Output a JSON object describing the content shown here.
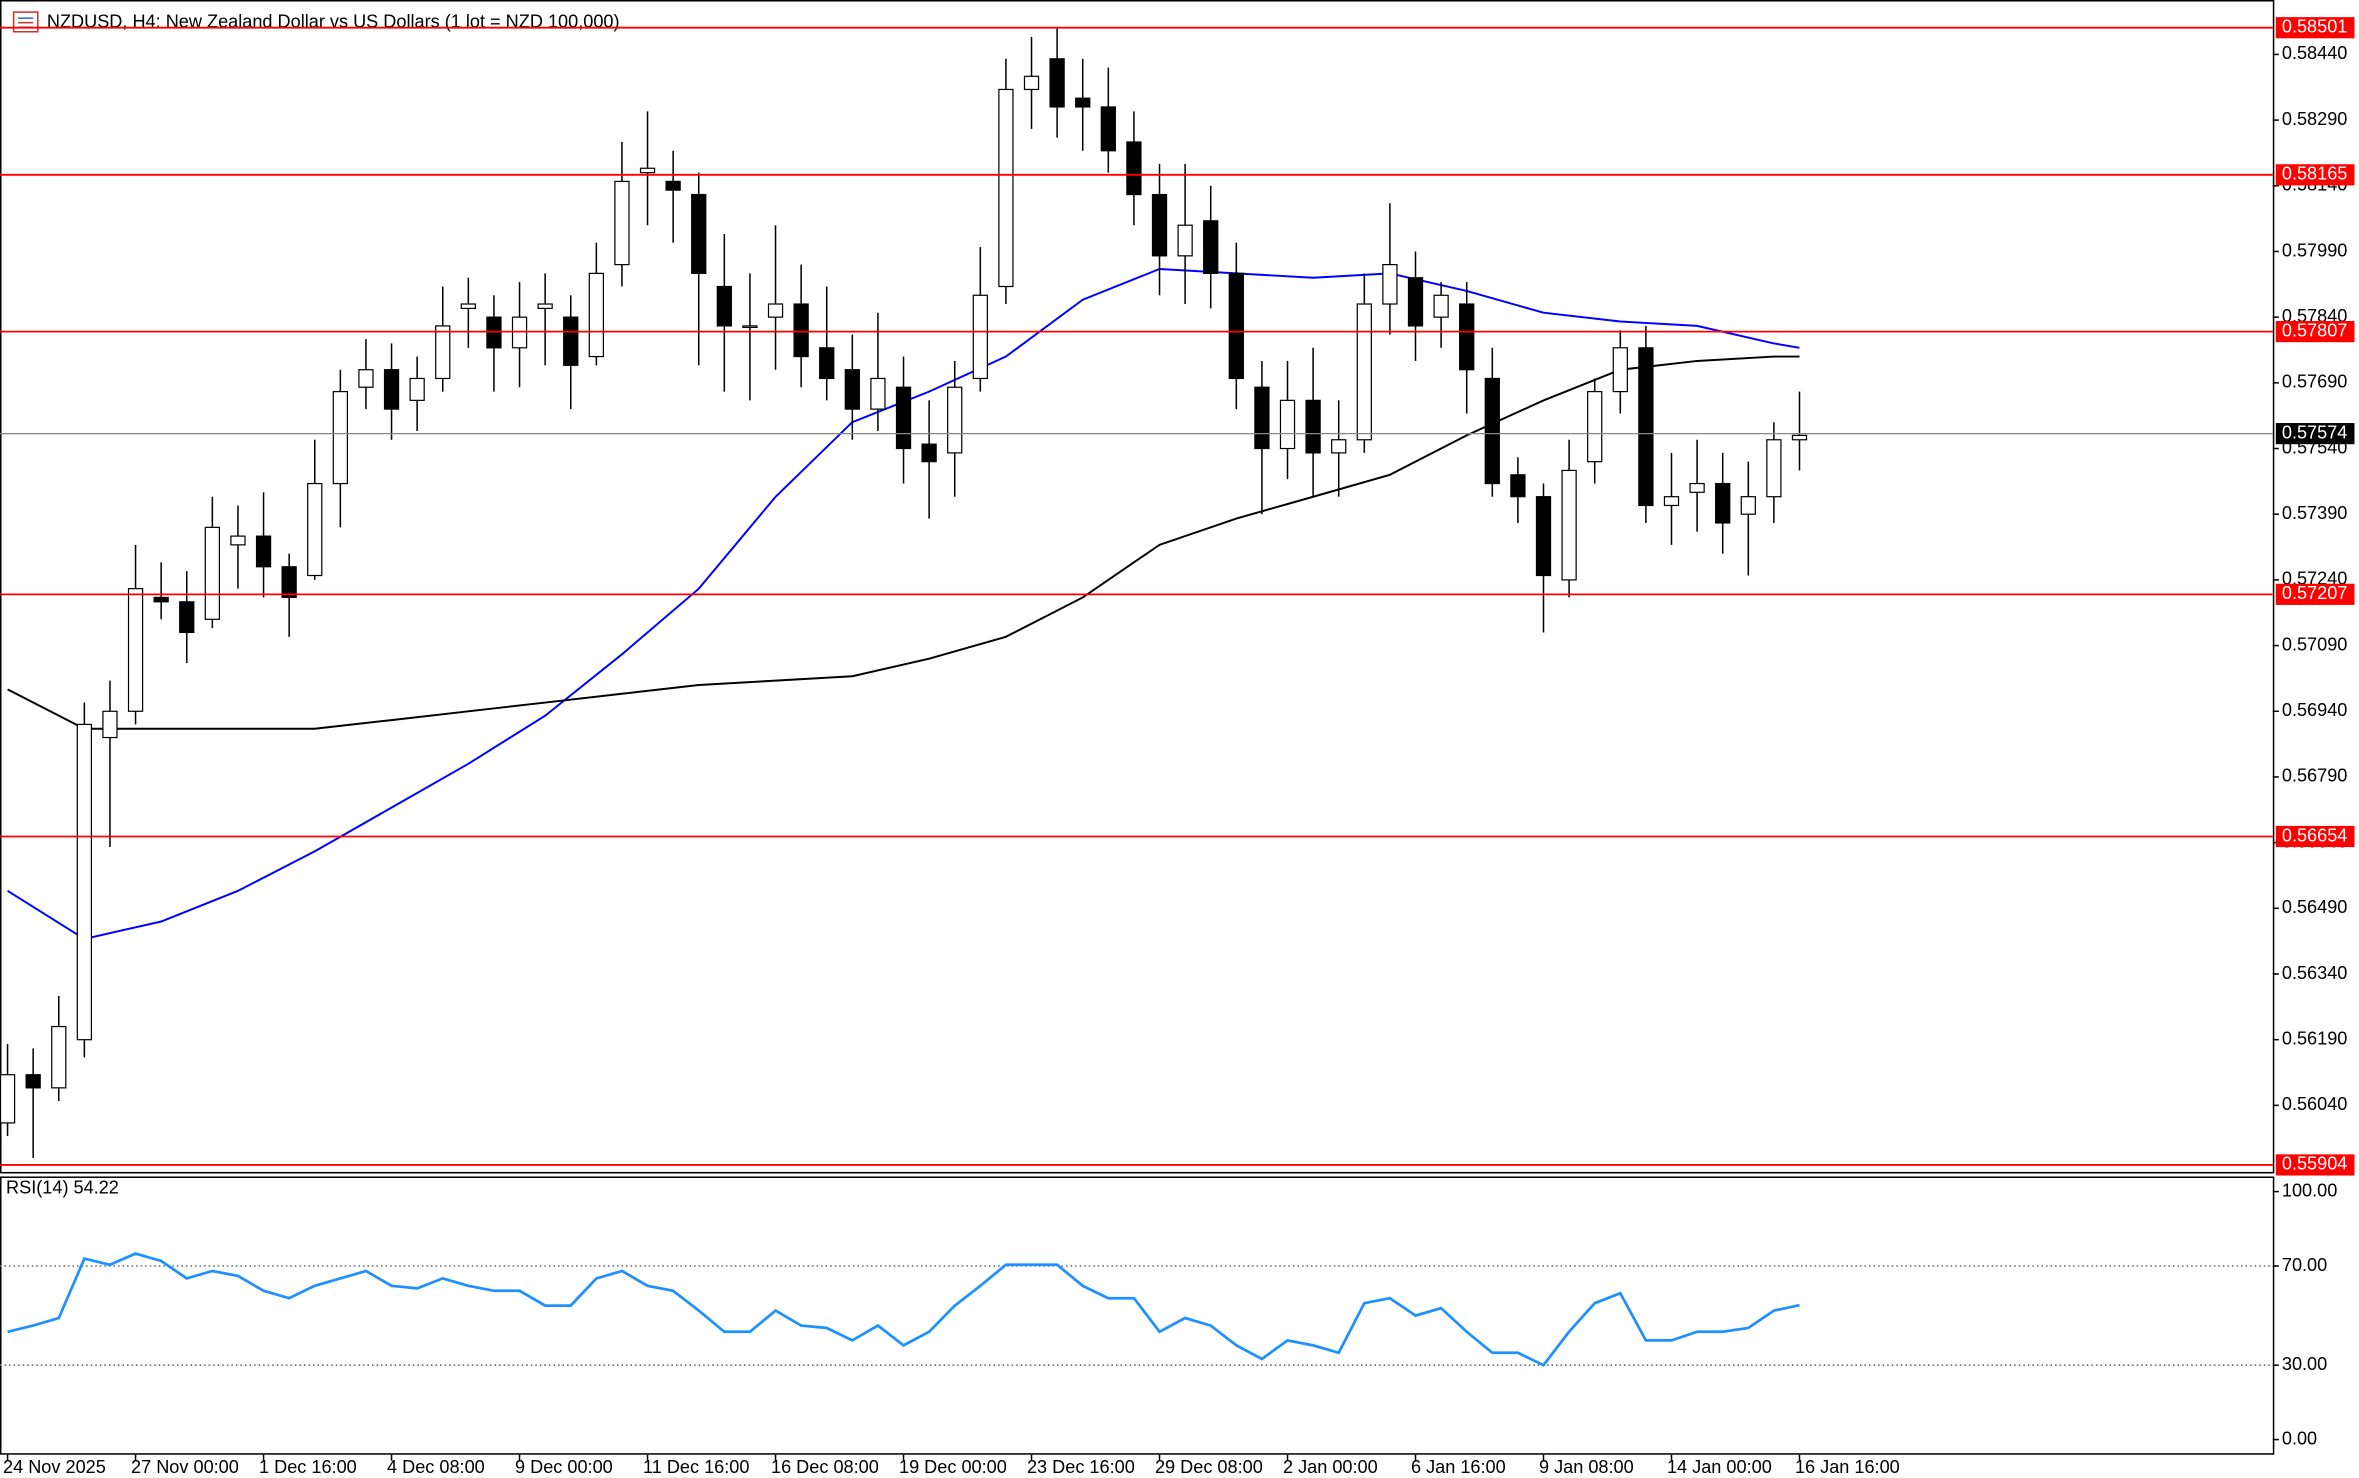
{
  "header": {
    "title": "NZDUSD, H4:  New Zealand Dollar vs US Dollars (1 lot = NZD 100,000)"
  },
  "chart_data": [
    {
      "type": "candlestick",
      "categories": [
        "24 Nov 2025",
        null,
        null,
        null,
        null,
        "27 Nov 00:00",
        null,
        null,
        null,
        null,
        "1 Dec 16:00",
        null,
        null,
        null,
        null,
        "4 Dec 08:00",
        null,
        null,
        null,
        null,
        "9 Dec 00:00",
        null,
        null,
        null,
        null,
        "11 Dec 16:00",
        null,
        null,
        null,
        null,
        "16 Dec 08:00",
        null,
        null,
        null,
        null,
        "19 Dec 00:00",
        null,
        null,
        null,
        null,
        "23 Dec 16:00",
        null,
        null,
        null,
        null,
        "29 Dec 08:00",
        null,
        null,
        null,
        null,
        "2 Jan 00:00",
        null,
        null,
        null,
        null,
        "6 Jan 16:00",
        null,
        null,
        null,
        null,
        "9 Jan 08:00",
        null,
        null,
        null,
        null,
        "14 Jan 00:00",
        null,
        null,
        null,
        null,
        "16 Jan 16:00"
      ],
      "open": [
        0.56,
        0.5611,
        0.5608,
        0.5619,
        0.5688,
        0.5694,
        0.572,
        0.5719,
        0.5715,
        0.5732,
        0.5734,
        0.5727,
        0.5725,
        0.5746,
        0.5768,
        0.5772,
        0.5765,
        0.577,
        0.5786,
        0.5784,
        0.5777,
        0.5786,
        0.5784,
        0.5775,
        0.5796,
        0.5817,
        0.5815,
        0.5812,
        0.5791,
        0.5782,
        0.5784,
        0.5787,
        0.5777,
        0.5772,
        0.5763,
        0.5768,
        0.5755,
        0.5753,
        0.577,
        0.5791,
        0.5836,
        0.5843,
        0.5834,
        0.5832,
        0.5824,
        0.5812,
        0.5798,
        0.5806,
        0.5794,
        0.5768,
        0.5754,
        0.5765,
        0.5753,
        0.5756,
        0.5787,
        0.5793,
        0.5784,
        0.5787,
        0.577,
        0.5748,
        0.5743,
        0.5724,
        0.5751,
        0.5767,
        0.5777,
        0.5741,
        0.5744,
        0.5746,
        0.5739,
        0.5743,
        0.5756
      ],
      "high": [
        0.5618,
        0.5617,
        0.5629,
        0.5696,
        0.5701,
        0.5732,
        0.5728,
        0.5726,
        0.5743,
        0.5741,
        0.5744,
        0.573,
        0.5756,
        0.5772,
        0.5779,
        0.5778,
        0.5775,
        0.5791,
        0.5793,
        0.5789,
        0.5792,
        0.5794,
        0.5789,
        0.5801,
        0.5824,
        0.5831,
        0.5822,
        0.5817,
        0.5803,
        0.5794,
        0.5805,
        0.5796,
        0.5791,
        0.578,
        0.5785,
        0.5775,
        0.5765,
        0.5774,
        0.58,
        0.5843,
        0.5848,
        0.585,
        0.5843,
        0.5841,
        0.5831,
        0.5819,
        0.5819,
        0.5814,
        0.5801,
        0.5774,
        0.5774,
        0.5777,
        0.5765,
        0.5794,
        0.581,
        0.5799,
        0.5792,
        0.5792,
        0.5777,
        0.5752,
        0.5746,
        0.5756,
        0.577,
        0.5781,
        0.5782,
        0.5753,
        0.5756,
        0.5753,
        0.5751,
        0.576,
        0.5767
      ],
      "low": [
        0.5597,
        0.5592,
        0.5605,
        0.5615,
        0.5663,
        0.5691,
        0.5715,
        0.5705,
        0.5713,
        0.5722,
        0.572,
        0.5711,
        0.5724,
        0.5736,
        0.5763,
        0.5756,
        0.5758,
        0.5767,
        0.5777,
        0.5767,
        0.5768,
        0.5773,
        0.5763,
        0.5773,
        0.5791,
        0.5805,
        0.5801,
        0.5773,
        0.5767,
        0.5765,
        0.5772,
        0.5768,
        0.5765,
        0.5756,
        0.5758,
        0.5746,
        0.5738,
        0.5743,
        0.5767,
        0.5787,
        0.5827,
        0.5825,
        0.5822,
        0.5817,
        0.5805,
        0.5789,
        0.5787,
        0.5786,
        0.5763,
        0.5739,
        0.5747,
        0.5743,
        0.5743,
        0.5753,
        0.578,
        0.5774,
        0.5777,
        0.5762,
        0.5743,
        0.5737,
        0.5712,
        0.572,
        0.5746,
        0.5762,
        0.5737,
        0.5732,
        0.5735,
        0.573,
        0.5725,
        0.5737,
        0.5749
      ],
      "close": [
        0.5611,
        0.5608,
        0.5622,
        0.5691,
        0.5694,
        0.5722,
        0.5719,
        0.5712,
        0.5736,
        0.5734,
        0.5727,
        0.572,
        0.5746,
        0.5767,
        0.5772,
        0.5763,
        0.577,
        0.5782,
        0.5787,
        0.5777,
        0.5784,
        0.5787,
        0.5773,
        0.5794,
        0.5815,
        0.5818,
        0.5813,
        0.5794,
        0.5782,
        0.5782,
        0.5787,
        0.5775,
        0.577,
        0.5763,
        0.577,
        0.5754,
        0.5751,
        0.5768,
        0.5789,
        0.5836,
        0.5839,
        0.5832,
        0.5832,
        0.5822,
        0.5812,
        0.5798,
        0.5805,
        0.5794,
        0.577,
        0.5754,
        0.5765,
        0.5753,
        0.5756,
        0.5787,
        0.5796,
        0.5782,
        0.5789,
        0.5772,
        0.5746,
        0.5743,
        0.5725,
        0.5749,
        0.5767,
        0.5777,
        0.5741,
        0.5743,
        0.5746,
        0.5737,
        0.5743,
        0.5756,
        0.5757
      ],
      "up_color": "#ffffff",
      "down_color": "#000000",
      "overlays": [
        {
          "color": "#0000ff",
          "x": [
            0,
            3,
            6,
            9,
            12,
            15,
            18,
            21,
            24,
            27,
            30,
            33,
            36,
            39,
            42,
            45,
            48,
            51,
            54,
            57,
            60,
            63,
            66,
            69,
            70
          ],
          "values": [
            0.5653,
            0.5642,
            0.5646,
            0.5653,
            0.5662,
            0.5672,
            0.5682,
            0.5693,
            0.5707,
            0.5722,
            0.5743,
            0.576,
            0.5767,
            0.5775,
            0.5788,
            0.5795,
            0.5794,
            0.5793,
            0.5794,
            0.579,
            0.5785,
            0.5783,
            0.5782,
            0.5778,
            0.5777
          ]
        },
        {
          "color": "#000000",
          "x": [
            0,
            3,
            6,
            9,
            12,
            15,
            18,
            21,
            24,
            27,
            30,
            33,
            36,
            39,
            42,
            45,
            48,
            51,
            54,
            57,
            60,
            63,
            66,
            69,
            70
          ],
          "values": [
            0.5699,
            0.569,
            0.569,
            0.569,
            0.569,
            0.5692,
            0.5694,
            0.5696,
            0.5698,
            0.57,
            0.5701,
            0.5702,
            0.5706,
            0.5711,
            0.572,
            0.5732,
            0.5738,
            0.5743,
            0.5748,
            0.5757,
            0.5765,
            0.5772,
            0.5774,
            0.5775,
            0.5775
          ]
        }
      ],
      "ylim": [
        0.55888,
        0.58547
      ],
      "yticks": [
        {
          "value": 0.5844,
          "label": "0.58440"
        },
        {
          "value": 0.5829,
          "label": "0.58290"
        },
        {
          "value": 0.5814,
          "label": "0.58140"
        },
        {
          "value": 0.5799,
          "label": "0.57990"
        },
        {
          "value": 0.5784,
          "label": "0.57840"
        },
        {
          "value": 0.5769,
          "label": "0.57690"
        },
        {
          "value": 0.5754,
          "label": "0.57540"
        },
        {
          "value": 0.5739,
          "label": "0.57390"
        },
        {
          "value": 0.5724,
          "label": "0.57240"
        },
        {
          "value": 0.5709,
          "label": "0.57090"
        },
        {
          "value": 0.5694,
          "label": "0.56940"
        },
        {
          "value": 0.5679,
          "label": "0.56790"
        },
        {
          "value": 0.5664,
          "label": "0.56640"
        },
        {
          "value": 0.5649,
          "label": "0.56490"
        },
        {
          "value": 0.5634,
          "label": "0.56340"
        },
        {
          "value": 0.5619,
          "label": "0.56190"
        },
        {
          "value": 0.5604,
          "label": "0.56040"
        }
      ],
      "levels": [
        {
          "value": 0.58501,
          "label": "0.58501"
        },
        {
          "value": 0.58165,
          "label": "0.58165"
        },
        {
          "value": 0.57807,
          "label": "0.57807"
        },
        {
          "value": 0.57207,
          "label": "0.57207"
        },
        {
          "value": 0.56654,
          "label": "0.56654"
        },
        {
          "value": 0.55904,
          "label": "0.55904"
        }
      ],
      "level_color": "#ff0000",
      "current": {
        "value": 0.57574,
        "label": "0.57574"
      }
    },
    {
      "type": "line",
      "title": "RSI(14) 54.22",
      "color": "#1e90ff",
      "values": [
        43.5,
        46,
        49,
        73,
        70.5,
        75,
        72,
        65,
        68,
        66,
        60,
        57,
        62,
        65,
        68,
        62,
        61,
        65,
        62,
        60,
        60,
        54,
        54,
        65,
        68,
        62,
        60,
        52,
        43.5,
        43.5,
        52,
        46,
        45,
        40,
        46,
        38,
        43.5,
        54,
        62,
        70.5,
        70.5,
        70.5,
        62,
        57,
        57,
        43.5,
        49,
        46,
        38,
        32.5,
        40,
        38,
        35,
        55,
        57,
        50,
        53,
        43.5,
        35,
        35,
        30,
        43.5,
        55,
        59,
        40,
        40,
        43.5,
        43.5,
        45,
        52,
        54.22
      ],
      "ylim": [
        0,
        100
      ],
      "yticks": [
        {
          "value": 100,
          "label": "100.00"
        },
        {
          "value": 70,
          "label": "70.00"
        },
        {
          "value": 30,
          "label": "30.00"
        },
        {
          "value": 0,
          "label": "0.00"
        }
      ],
      "levels": [
        70,
        30
      ]
    }
  ]
}
